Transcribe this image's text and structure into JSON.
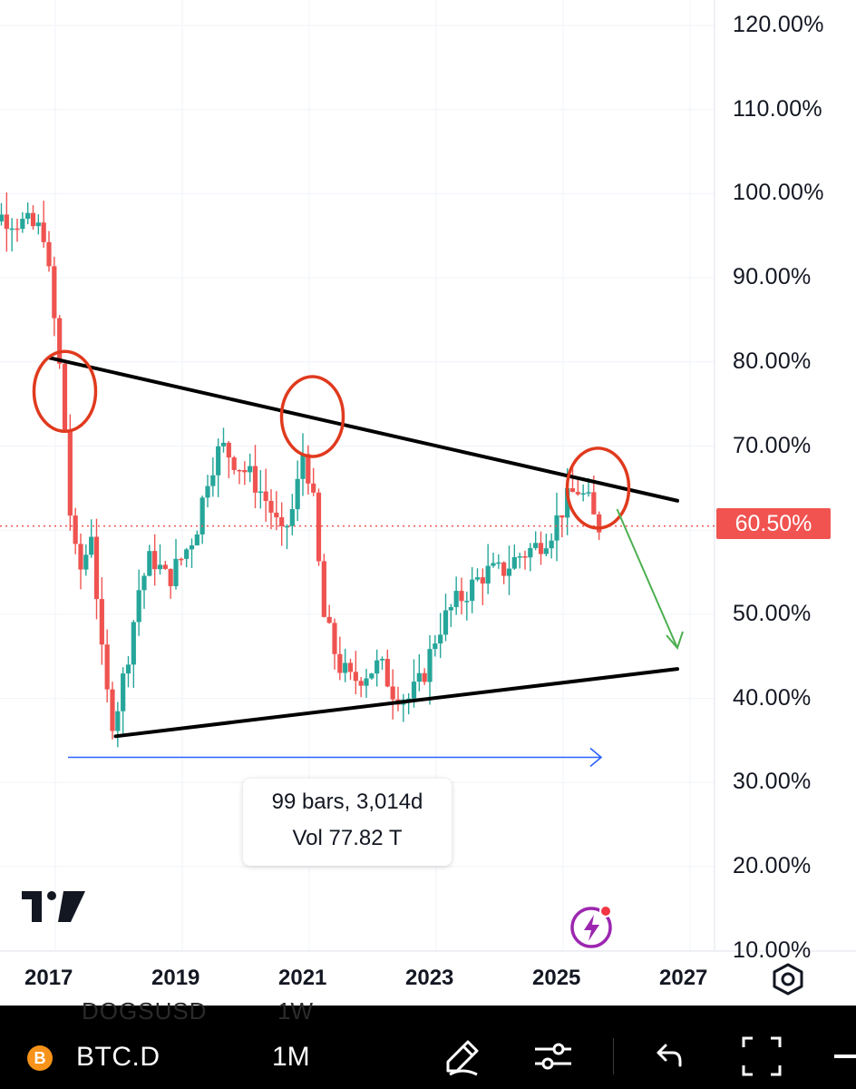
{
  "chart_data": {
    "type": "candlestick",
    "symbol": "BTC.D",
    "interval": "1M",
    "y_axis": {
      "unit": "%",
      "tick_labels": [
        "120.00%",
        "110.00%",
        "100.00%",
        "90.00%",
        "80.00%",
        "70.00%",
        "60.00%",
        "50.00%",
        "40.00%",
        "30.00%",
        "20.00%",
        "10.00%"
      ],
      "range": [
        10,
        122
      ]
    },
    "x_axis": {
      "tick_labels": [
        "2017",
        "2019",
        "2021",
        "2023",
        "2025",
        "2027"
      ],
      "range": [
        2015.65,
        2027.35
      ]
    },
    "current_price_label": "60.50%",
    "current_price": 60.5,
    "candle_path_approx": [
      [
        2015.65,
        98.5
      ],
      [
        2016.4,
        97.0
      ],
      [
        2016.9,
        95.5
      ],
      [
        2017.05,
        86
      ],
      [
        2017.2,
        76
      ],
      [
        2017.35,
        58
      ],
      [
        2017.5,
        55
      ],
      [
        2017.65,
        60
      ],
      [
        2017.85,
        42
      ],
      [
        2018.0,
        37
      ],
      [
        2018.2,
        44
      ],
      [
        2018.4,
        53
      ],
      [
        2018.6,
        57
      ],
      [
        2018.85,
        54
      ],
      [
        2019.1,
        57
      ],
      [
        2019.3,
        60
      ],
      [
        2019.5,
        67
      ],
      [
        2019.7,
        70
      ],
      [
        2019.95,
        68
      ],
      [
        2020.2,
        66
      ],
      [
        2020.45,
        63
      ],
      [
        2020.65,
        59
      ],
      [
        2020.85,
        63
      ],
      [
        2021.0,
        70
      ],
      [
        2021.15,
        63
      ],
      [
        2021.3,
        50
      ],
      [
        2021.55,
        44
      ],
      [
        2021.75,
        42
      ],
      [
        2021.95,
        43
      ],
      [
        2022.2,
        44
      ],
      [
        2022.4,
        41
      ],
      [
        2022.65,
        40
      ],
      [
        2022.85,
        42
      ],
      [
        2023.1,
        48
      ],
      [
        2023.35,
        51
      ],
      [
        2023.6,
        53
      ],
      [
        2023.85,
        55
      ],
      [
        2024.1,
        55
      ],
      [
        2024.4,
        57
      ],
      [
        2024.65,
        58
      ],
      [
        2024.9,
        60
      ],
      [
        2025.1,
        63
      ],
      [
        2025.3,
        65
      ],
      [
        2025.5,
        63
      ],
      [
        2025.6,
        60.5
      ]
    ],
    "annotations": {
      "upper_trendline": [
        [
          2016.9,
          80.5
        ],
        [
          2026.8,
          63.5
        ]
      ],
      "lower_trendline": [
        [
          2017.95,
          35.5
        ],
        [
          2026.8,
          43.5
        ]
      ],
      "circled_points": [
        [
          2017.15,
          76.5
        ],
        [
          2021.05,
          73.5
        ],
        [
          2025.55,
          65
        ]
      ],
      "projection_arrow": [
        [
          2025.85,
          62.5
        ],
        [
          2026.8,
          46
        ]
      ],
      "measure_range": {
        "from": 2017.2,
        "to": 2025.6,
        "y": 33,
        "line1": "99 bars, 3,014d",
        "line2": "Vol 77.82 T"
      }
    }
  },
  "colors": {
    "up": "#26a69a",
    "down": "#ef5350",
    "trendline": "#000000",
    "circle": "#e03a1e",
    "projection": "#4caf50",
    "measure": "#2962ff",
    "price_tag_bg": "#f05350"
  },
  "overlay": {
    "ghost_symbol": "DOGSUSD",
    "ghost_interval": "1W"
  },
  "toolbar": {
    "symbol": "BTC.D",
    "symbol_icon": "B",
    "interval": "1M",
    "icons": [
      "pencil-icon",
      "sliders-icon",
      "undo-icon",
      "fullscreen-icon",
      "more-icon"
    ]
  }
}
